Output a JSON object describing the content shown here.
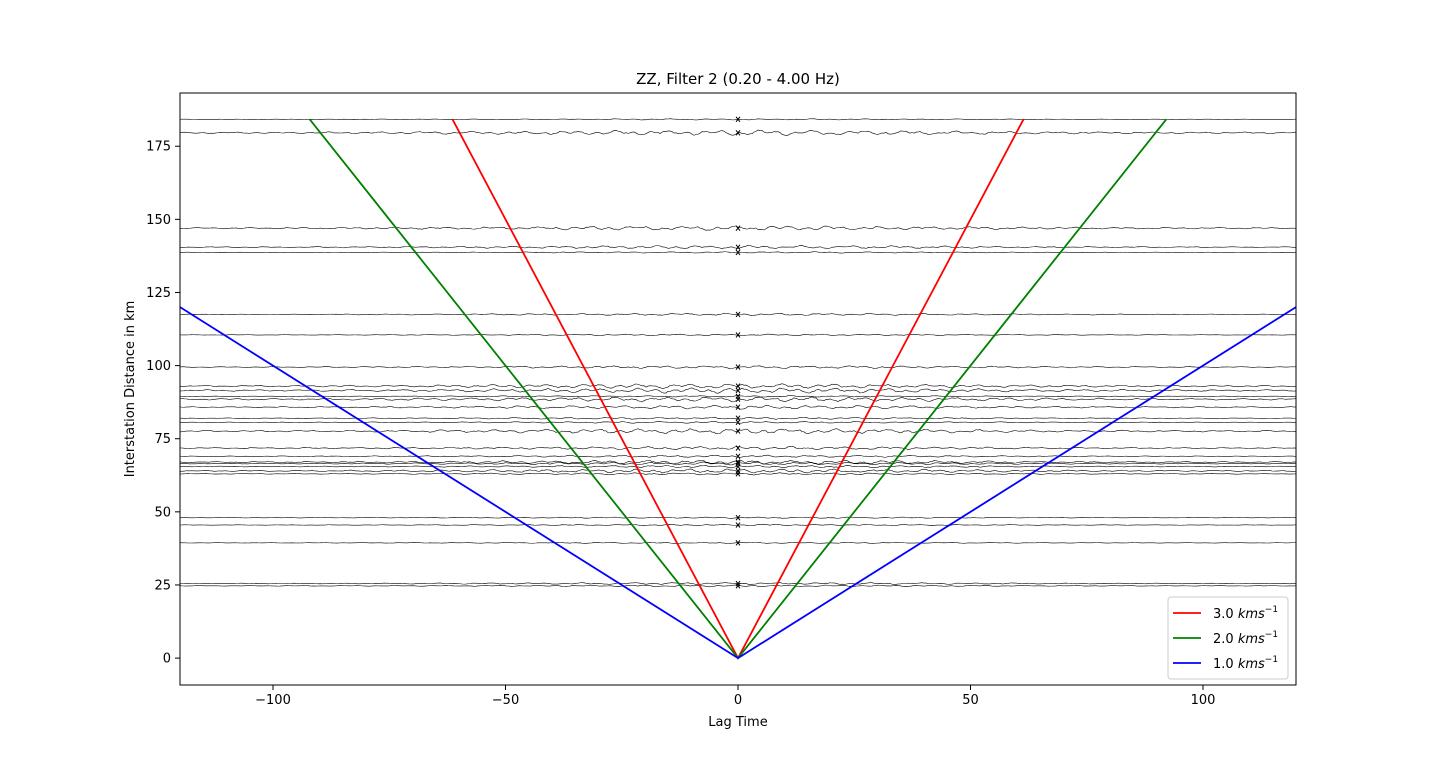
{
  "chart_data": {
    "type": "line",
    "title": "ZZ, Filter 2 (0.20 - 4.00 Hz)",
    "xlabel": "Lag Time",
    "ylabel": "Interstation Distance in km",
    "xlim": [
      -120,
      120
    ],
    "ylim": [
      -9.2,
      193.2
    ],
    "xticks": [
      -100,
      -50,
      0,
      50,
      100
    ],
    "yticks": [
      0,
      25,
      50,
      75,
      100,
      125,
      150,
      175
    ],
    "xtick_labels": [
      "−100",
      "−50",
      "0",
      "50",
      "100"
    ],
    "ytick_labels": [
      "0",
      "25",
      "50",
      "75",
      "100",
      "125",
      "150",
      "175"
    ],
    "grid": false,
    "legend_position": "lower-right",
    "series": [
      {
        "name": "3.0 km/s",
        "velocity_km_s": 3.0,
        "color": "#ff0000",
        "x": [
          -61.4,
          0,
          61.4
        ],
        "y": [
          184.2,
          0,
          184.2
        ]
      },
      {
        "name": "2.0 km/s",
        "velocity_km_s": 2.0,
        "color": "#008000",
        "x": [
          -92.1,
          0,
          92.1
        ],
        "y": [
          184.2,
          0,
          184.2
        ]
      },
      {
        "name": "1.0 km/s",
        "velocity_km_s": 1.0,
        "color": "#0000ff",
        "x": [
          -120,
          0,
          120
        ],
        "y": [
          120,
          0,
          120
        ]
      }
    ],
    "legend_entries": [
      {
        "value": "3.0",
        "unit": "kms",
        "exp": "−1",
        "color": "#ff0000"
      },
      {
        "value": "2.0",
        "unit": "kms",
        "exp": "−1",
        "color": "#008000"
      },
      {
        "value": "1.0",
        "unit": "kms",
        "exp": "−1",
        "color": "#0000ff"
      }
    ],
    "traces": {
      "color": "#000000",
      "distances_km": [
        184.2,
        179.6,
        147.0,
        140.5,
        138.7,
        117.5,
        110.5,
        99.5,
        93.0,
        91.5,
        89.5,
        88.5,
        85.8,
        82.0,
        80.6,
        77.6,
        71.8,
        69.0,
        67.0,
        66.5,
        65.5,
        64.0,
        63.0,
        48.0,
        45.5,
        39.4,
        25.5,
        24.7
      ]
    }
  }
}
